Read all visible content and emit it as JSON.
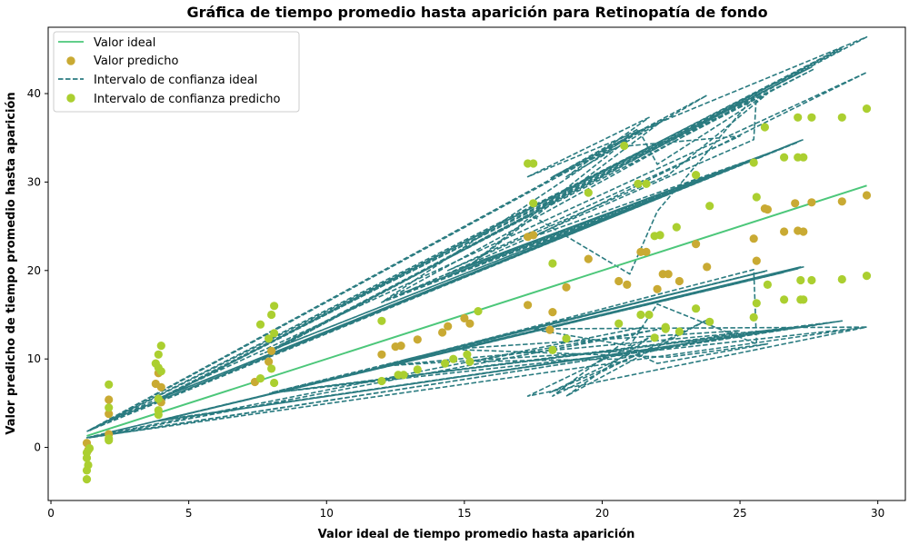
{
  "chart_data": {
    "type": "scatter",
    "title": "Gráfica de tiempo promedio hasta aparición para Retinopatía de fondo",
    "xlabel": "Valor ideal de tiempo promedio hasta aparición",
    "ylabel": "Valor predicho de tiempo promedio hasta aparición",
    "xlim": [
      -0.1,
      31
    ],
    "ylim": [
      -6,
      47.5
    ],
    "xticks": [
      0,
      5,
      10,
      15,
      20,
      25,
      30
    ],
    "yticks": [
      0,
      10,
      20,
      30,
      40
    ],
    "grid": false,
    "legend_position": "top-left",
    "colors": {
      "ideal_line": "#4cc77a",
      "predicted": "#c9aa33",
      "ideal_interval": "#2a7b80",
      "predicted_interval": "#abcf30"
    },
    "legend": [
      {
        "label": "Valor ideal",
        "kind": "line",
        "color": "#4cc77a"
      },
      {
        "label": "Valor predicho",
        "kind": "marker",
        "color": "#c9aa33"
      },
      {
        "label": "Intervalo de confianza ideal",
        "kind": "dashed",
        "color": "#2a7b80"
      },
      {
        "label": "Intervalo de confianza predicho",
        "kind": "marker",
        "color": "#abcf30"
      }
    ],
    "ideal_line": {
      "name": "Valor ideal",
      "x": [
        1.3,
        29.6
      ],
      "y": [
        1.3,
        29.6
      ]
    },
    "predicted": {
      "name": "Valor predicho",
      "points": [
        [
          1.3,
          0.5
        ],
        [
          1.35,
          -0.3
        ],
        [
          2.1,
          1.5
        ],
        [
          2.1,
          3.8
        ],
        [
          2.1,
          5.4
        ],
        [
          3.8,
          7.2
        ],
        [
          3.9,
          8.4
        ],
        [
          4.0,
          6.8
        ],
        [
          4.0,
          5.1
        ],
        [
          7.4,
          7.4
        ],
        [
          7.9,
          9.7
        ],
        [
          8.0,
          10.9
        ],
        [
          12.0,
          10.5
        ],
        [
          12.5,
          11.4
        ],
        [
          12.7,
          11.5
        ],
        [
          13.3,
          12.2
        ],
        [
          14.2,
          13.0
        ],
        [
          14.4,
          13.7
        ],
        [
          15.0,
          14.6
        ],
        [
          15.2,
          14.0
        ],
        [
          17.3,
          16.1
        ],
        [
          17.3,
          23.8
        ],
        [
          17.5,
          24.0
        ],
        [
          18.1,
          13.3
        ],
        [
          18.2,
          15.3
        ],
        [
          18.7,
          18.1
        ],
        [
          19.5,
          21.3
        ],
        [
          20.6,
          18.8
        ],
        [
          20.9,
          18.4
        ],
        [
          21.4,
          22.1
        ],
        [
          21.6,
          22.1
        ],
        [
          22.0,
          17.9
        ],
        [
          22.2,
          19.6
        ],
        [
          22.4,
          19.6
        ],
        [
          22.8,
          18.8
        ],
        [
          23.4,
          23.0
        ],
        [
          23.8,
          20.4
        ],
        [
          25.5,
          23.6
        ],
        [
          25.6,
          21.1
        ],
        [
          25.9,
          27.0
        ],
        [
          26.0,
          26.9
        ],
        [
          26.6,
          24.4
        ],
        [
          27.0,
          27.6
        ],
        [
          27.1,
          24.5
        ],
        [
          27.3,
          24.4
        ],
        [
          27.6,
          27.7
        ],
        [
          28.7,
          27.8
        ],
        [
          29.6,
          28.5
        ]
      ]
    },
    "predicted_interval": {
      "name": "Intervalo de confianza predicho",
      "points": [
        [
          1.3,
          -0.6
        ],
        [
          1.3,
          -1.2
        ],
        [
          1.35,
          -2.0
        ],
        [
          1.3,
          -2.6
        ],
        [
          1.3,
          -3.6
        ],
        [
          1.4,
          -0.1
        ],
        [
          2.1,
          0.8
        ],
        [
          2.1,
          1.0
        ],
        [
          2.1,
          4.5
        ],
        [
          2.1,
          7.1
        ],
        [
          3.8,
          9.5
        ],
        [
          3.9,
          10.5
        ],
        [
          4.0,
          11.5
        ],
        [
          3.9,
          9.0
        ],
        [
          4.0,
          8.6
        ],
        [
          3.9,
          4.2
        ],
        [
          3.9,
          3.7
        ],
        [
          3.9,
          5.5
        ],
        [
          7.6,
          13.9
        ],
        [
          7.6,
          7.8
        ],
        [
          7.9,
          12.3
        ],
        [
          8.0,
          15.0
        ],
        [
          8.1,
          16.0
        ],
        [
          8.1,
          12.9
        ],
        [
          8.0,
          8.9
        ],
        [
          8.1,
          7.3
        ],
        [
          12.0,
          14.3
        ],
        [
          12.0,
          7.5
        ],
        [
          12.6,
          8.2
        ],
        [
          12.8,
          8.2
        ],
        [
          13.3,
          8.8
        ],
        [
          14.3,
          9.5
        ],
        [
          14.6,
          10.0
        ],
        [
          15.1,
          10.5
        ],
        [
          15.2,
          9.7
        ],
        [
          15.5,
          15.4
        ],
        [
          17.3,
          32.1
        ],
        [
          17.5,
          32.1
        ],
        [
          17.5,
          27.6
        ],
        [
          18.2,
          11.0
        ],
        [
          18.2,
          20.8
        ],
        [
          18.7,
          12.3
        ],
        [
          19.5,
          28.8
        ],
        [
          20.6,
          14.0
        ],
        [
          20.8,
          34.1
        ],
        [
          21.3,
          29.8
        ],
        [
          21.6,
          29.8
        ],
        [
          21.4,
          15.0
        ],
        [
          21.7,
          15.0
        ],
        [
          21.9,
          12.4
        ],
        [
          21.9,
          23.9
        ],
        [
          22.1,
          24.0
        ],
        [
          22.3,
          13.4
        ],
        [
          22.3,
          13.6
        ],
        [
          22.7,
          24.9
        ],
        [
          22.8,
          13.1
        ],
        [
          23.4,
          30.8
        ],
        [
          23.4,
          15.7
        ],
        [
          23.9,
          27.3
        ],
        [
          23.9,
          14.2
        ],
        [
          25.5,
          32.2
        ],
        [
          25.6,
          28.3
        ],
        [
          25.5,
          14.7
        ],
        [
          25.6,
          16.3
        ],
        [
          25.9,
          36.2
        ],
        [
          26.0,
          18.4
        ],
        [
          26.6,
          32.8
        ],
        [
          26.6,
          16.7
        ],
        [
          27.1,
          37.3
        ],
        [
          27.1,
          32.8
        ],
        [
          27.2,
          18.9
        ],
        [
          27.2,
          16.7
        ],
        [
          27.3,
          32.8
        ],
        [
          27.3,
          16.7
        ],
        [
          27.6,
          37.3
        ],
        [
          27.6,
          18.9
        ],
        [
          28.7,
          37.3
        ],
        [
          28.7,
          19.0
        ],
        [
          29.6,
          38.3
        ],
        [
          29.6,
          19.4
        ]
      ]
    },
    "ideal_interval": {
      "name": "Intervalo de confianza ideal",
      "upper_path_x": [
        1.3,
        27.2,
        2.1,
        27.1,
        3.9,
        26.6,
        4.0,
        27.2,
        7.6,
        27.3,
        8.0,
        17.4,
        21.0,
        22.0,
        25.6,
        25.5,
        12.0,
        23.5,
        12.7,
        25.6,
        13.3,
        25.9,
        14.3,
        25.9,
        15.0,
        25.5,
        15.5,
        26.0,
        17.5,
        29.6,
        1.3,
        28.7,
        3.9,
        27.7,
        7.9,
        27.3,
        12.0,
        21.3,
        20.6,
        18.1,
        21.3,
        22.0,
        26.0,
        22.4,
        14.4,
        25.0,
        20.6,
        15.2,
        22.3,
        1.4,
        27.6,
        4.0,
        28.7,
        8.1,
        29.6,
        17.3,
        21.7,
        18.7,
        23.8,
        18.2,
        21.5,
        1.3
      ],
      "upper_path_y": [
        1.8,
        34.7,
        3.0,
        34.5,
        5.5,
        33.9,
        5.6,
        34.7,
        10.5,
        34.8,
        11.0,
        26.3,
        19.6,
        26.7,
        40.0,
        34.8,
        16.4,
        30.0,
        17.4,
        32.7,
        18.1,
        33.1,
        19.5,
        33.1,
        20.4,
        32.6,
        21.0,
        33.2,
        23.8,
        42.4,
        1.8,
        45.0,
        5.5,
        42.8,
        10.9,
        42.6,
        16.4,
        35.8,
        34.0,
        30.4,
        36.0,
        32.0,
        40.0,
        30.8,
        20.0,
        35.2,
        34.0,
        20.6,
        37.2,
        1.9,
        43.0,
        5.5,
        45.2,
        11.0,
        46.4,
        30.6,
        37.3,
        30.6,
        39.8,
        30.6,
        36.0,
        1.8
      ],
      "lower_path_x": [
        1.3,
        27.2,
        2.1,
        27.1,
        3.9,
        26.6,
        4.0,
        27.2,
        7.6,
        27.3,
        8.0,
        17.4,
        21.0,
        22.0,
        25.6,
        25.5,
        12.0,
        23.5,
        12.7,
        25.6,
        13.3,
        25.9,
        14.3,
        25.9,
        15.0,
        25.5,
        15.5,
        26.0,
        17.5,
        29.6,
        1.3,
        28.7,
        3.9,
        27.7,
        7.9,
        27.3,
        12.0,
        21.3,
        20.6,
        18.1,
        21.3,
        22.0,
        26.0,
        22.4,
        14.4,
        25.0,
        20.6,
        15.2,
        22.3,
        1.4,
        27.6,
        4.0,
        28.7,
        8.1,
        29.6,
        17.3,
        21.7,
        18.7,
        23.8,
        18.2,
        21.5,
        1.3
      ],
      "lower_path_y": [
        1.1,
        20.4,
        1.7,
        20.2,
        3.0,
        19.8,
        3.1,
        20.4,
        5.8,
        20.4,
        6.2,
        13.4,
        11.5,
        16.2,
        11.7,
        20.1,
        9.2,
        18.1,
        9.8,
        19.7,
        10.2,
        19.9,
        11.0,
        19.9,
        11.5,
        19.6,
        12.0,
        20.0,
        13.4,
        13.6,
        1.1,
        14.3,
        3.0,
        13.8,
        6.1,
        13.6,
        9.2,
        11.0,
        10.0,
        6.2,
        10.5,
        9.5,
        11.7,
        10.2,
        11.1,
        13.2,
        10.0,
        9.7,
        13.5,
        1.1,
        13.8,
        3.1,
        14.3,
        6.2,
        13.6,
        5.8,
        12.4,
        5.8,
        14.4,
        5.8,
        13.6,
        1.1
      ]
    }
  }
}
